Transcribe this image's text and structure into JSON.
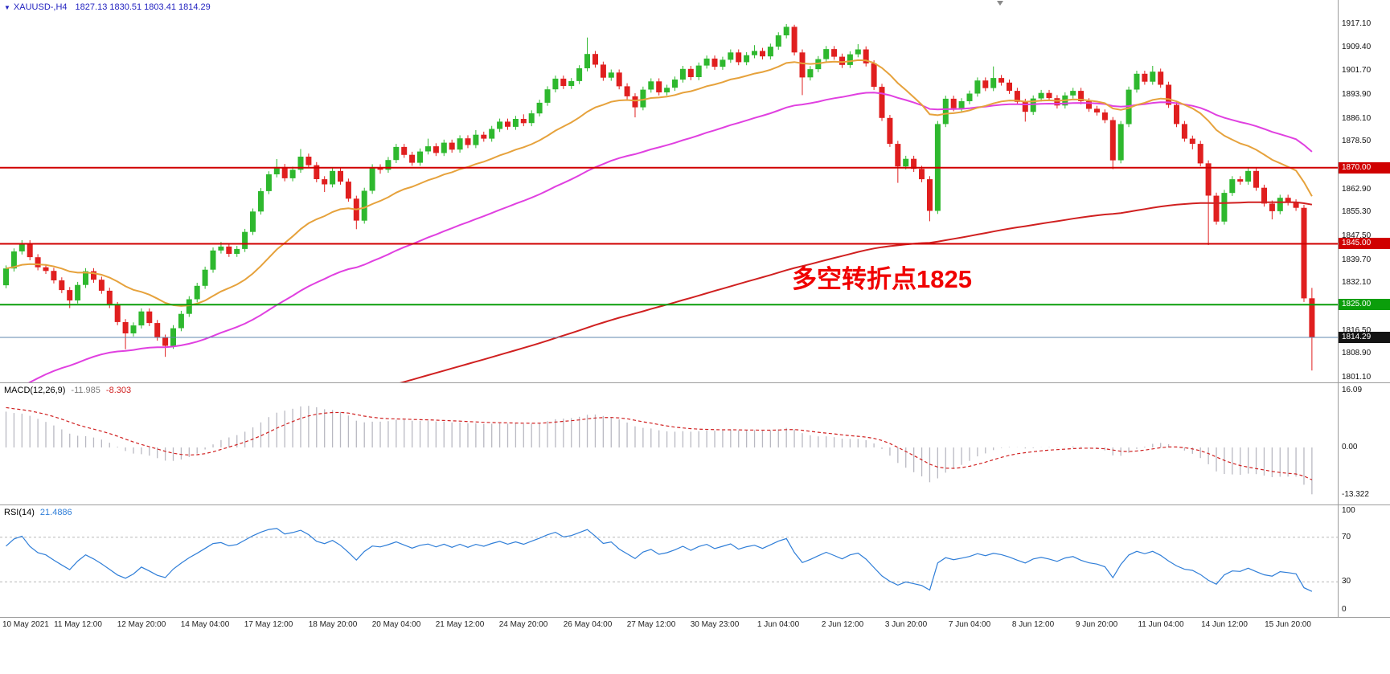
{
  "window": {
    "bg": "#ffffff"
  },
  "title": {
    "marker": "▼",
    "symbol_period": "XAUUSD-,H4",
    "ohlc": "1827.13 1830.51 1803.41 1814.29"
  },
  "annotation": {
    "text": "多空转折点1825",
    "color": "#f00000"
  },
  "colors": {
    "bull": "#2eb82e",
    "bear": "#e01f1f",
    "ma_fast": "#e6a23c",
    "ma_mid": "#e040e0",
    "ma_slow": "#d02020",
    "macd_hist": "#b9b9c2",
    "macd_signal": "#d02020",
    "rsi_line": "#2f7ed8",
    "hline_red": "#d00000",
    "hline_green": "#0b9e0b",
    "price_line": "#5f87af",
    "separator": "#9c9c9c",
    "title_text": "#2222c0",
    "macd_value_main": "#7a7a7a"
  },
  "price_axis": {
    "labels": [
      "1917.10",
      "1909.40",
      "1901.70",
      "1893.90",
      "1886.10",
      "1878.50",
      "1862.90",
      "1855.30",
      "1847.50",
      "1839.70",
      "1832.10",
      "1816.50",
      "1808.90",
      "1801.10"
    ],
    "tags": [
      {
        "text": "1870.00",
        "price": 1870.0,
        "bg": "#d00000"
      },
      {
        "text": "1845.00",
        "price": 1845.0,
        "bg": "#d00000"
      },
      {
        "text": "1825.00",
        "price": 1825.0,
        "bg": "#0b9e0b"
      },
      {
        "text": "1814.29",
        "price": 1814.29,
        "bg": "#141414"
      }
    ]
  },
  "chart_data": {
    "type": "candlestick",
    "symbol": "XAUUSD-",
    "timeframe": "H4",
    "current_bar": {
      "open": 1827.13,
      "high": 1830.51,
      "low": 1803.41,
      "close": 1814.29
    },
    "price_range": {
      "axis_top": 1917.1,
      "axis_bottom": 1801.1
    },
    "time_labels": [
      "10 May 2021",
      "11 May 12:00",
      "12 May 20:00",
      "14 May 04:00",
      "17 May 12:00",
      "18 May 20:00",
      "20 May 04:00",
      "21 May 12:00",
      "24 May 20:00",
      "26 May 04:00",
      "27 May 12:00",
      "30 May 23:00",
      "1 Jun 04:00",
      "2 Jun 12:00",
      "3 Jun 20:00",
      "7 Jun 04:00",
      "8 Jun 12:00",
      "9 Jun 20:00",
      "11 Jun 04:00",
      "14 Jun 12:00",
      "15 Jun 20:00"
    ],
    "hlines": [
      {
        "name": "resistance-line-1870",
        "price": 1870.0,
        "color_key": "hline_red",
        "width": 2
      },
      {
        "name": "resistance-line-1845",
        "price": 1845.0,
        "color_key": "hline_red",
        "width": 2
      },
      {
        "name": "support-line-1825",
        "price": 1825.0,
        "color_key": "hline_green",
        "width": 2
      },
      {
        "name": "current-price-line",
        "price": 1814.29,
        "color_key": "price_line",
        "width": 1
      }
    ],
    "moving_averages": [
      {
        "name": "ma-slow-line",
        "color_key": "ma_slow"
      },
      {
        "name": "ma-mid-line",
        "color_key": "ma_mid"
      },
      {
        "name": "ma-fast-line",
        "color_key": "ma_fast"
      }
    ],
    "candles": [
      [
        1831.4,
        1837.9,
        1830.4,
        1836.9
      ],
      [
        1836.9,
        1843.5,
        1835.9,
        1842.5
      ],
      [
        1842.5,
        1846.2,
        1841.5,
        1845.2
      ],
      [
        1845.2,
        1846.2,
        1839.6,
        1840.6
      ],
      [
        1840.6,
        1841.6,
        1836.3,
        1837.3
      ],
      [
        1837.3,
        1838.3,
        1835.1,
        1836.1
      ],
      [
        1836.1,
        1837.1,
        1832.0,
        1833.0
      ],
      [
        1833.0,
        1834.0,
        1828.8,
        1829.8
      ],
      [
        1829.8,
        1830.8,
        1823.9,
        1826.4
      ],
      [
        1826.4,
        1832.5,
        1825.4,
        1831.5
      ],
      [
        1831.5,
        1837.0,
        1830.5,
        1836.0
      ],
      [
        1836.0,
        1837.0,
        1832.2,
        1833.2
      ],
      [
        1833.2,
        1834.2,
        1828.6,
        1829.6
      ],
      [
        1829.6,
        1830.6,
        1823.9,
        1824.9
      ],
      [
        1824.9,
        1825.9,
        1818.3,
        1819.3
      ],
      [
        1819.3,
        1820.3,
        1810.4,
        1815.6
      ],
      [
        1815.6,
        1819.2,
        1814.6,
        1818.2
      ],
      [
        1818.2,
        1823.8,
        1817.2,
        1822.8
      ],
      [
        1822.8,
        1823.8,
        1818.0,
        1819.0
      ],
      [
        1819.0,
        1820.0,
        1813.2,
        1814.2
      ],
      [
        1814.2,
        1815.2,
        1807.9,
        1811.5
      ],
      [
        1811.5,
        1818.3,
        1810.5,
        1817.3
      ],
      [
        1817.3,
        1823.0,
        1816.3,
        1822.0
      ],
      [
        1822.0,
        1827.8,
        1821.0,
        1826.8
      ],
      [
        1826.8,
        1832.2,
        1825.8,
        1831.2
      ],
      [
        1831.2,
        1837.5,
        1830.2,
        1836.5
      ],
      [
        1836.5,
        1843.8,
        1835.5,
        1842.8
      ],
      [
        1842.8,
        1845.6,
        1841.8,
        1844.1
      ],
      [
        1844.1,
        1845.1,
        1840.7,
        1841.7
      ],
      [
        1841.7,
        1844.3,
        1840.7,
        1843.3
      ],
      [
        1843.3,
        1849.9,
        1842.3,
        1848.9
      ],
      [
        1848.9,
        1856.6,
        1847.9,
        1855.6
      ],
      [
        1855.6,
        1863.3,
        1854.6,
        1862.3
      ],
      [
        1862.3,
        1868.8,
        1861.3,
        1867.8
      ],
      [
        1867.8,
        1872.8,
        1866.8,
        1870.2
      ],
      [
        1870.2,
        1871.2,
        1865.5,
        1866.5
      ],
      [
        1866.5,
        1870.3,
        1865.5,
        1869.3
      ],
      [
        1869.3,
        1876.1,
        1868.3,
        1873.6
      ],
      [
        1873.6,
        1874.6,
        1869.8,
        1870.8
      ],
      [
        1870.8,
        1871.8,
        1865.2,
        1866.2
      ],
      [
        1866.2,
        1867.2,
        1862.0,
        1864.5
      ],
      [
        1864.5,
        1869.9,
        1863.5,
        1868.9
      ],
      [
        1868.9,
        1869.9,
        1864.4,
        1865.4
      ],
      [
        1865.4,
        1866.4,
        1858.8,
        1859.8
      ],
      [
        1859.8,
        1860.8,
        1849.8,
        1852.6
      ],
      [
        1852.6,
        1863.4,
        1851.6,
        1862.4
      ],
      [
        1862.4,
        1871.1,
        1861.4,
        1870.1
      ],
      [
        1870.1,
        1871.1,
        1868.0,
        1869.3
      ],
      [
        1869.3,
        1873.5,
        1868.3,
        1872.5
      ],
      [
        1872.5,
        1877.8,
        1871.5,
        1876.8
      ],
      [
        1876.8,
        1877.8,
        1873.2,
        1874.2
      ],
      [
        1874.2,
        1875.2,
        1870.6,
        1871.6
      ],
      [
        1871.6,
        1876.3,
        1870.6,
        1875.3
      ],
      [
        1875.3,
        1879.5,
        1874.3,
        1877.0
      ],
      [
        1877.0,
        1878.0,
        1873.8,
        1874.8
      ],
      [
        1874.8,
        1879.2,
        1873.8,
        1878.2
      ],
      [
        1878.2,
        1879.2,
        1874.9,
        1875.9
      ],
      [
        1875.9,
        1880.6,
        1874.9,
        1879.6
      ],
      [
        1879.6,
        1880.6,
        1876.4,
        1877.4
      ],
      [
        1877.4,
        1882.3,
        1876.4,
        1880.8
      ],
      [
        1880.8,
        1881.8,
        1878.5,
        1879.5
      ],
      [
        1879.5,
        1883.7,
        1878.5,
        1882.7
      ],
      [
        1882.7,
        1886.1,
        1881.7,
        1885.1
      ],
      [
        1885.1,
        1886.1,
        1882.4,
        1883.4
      ],
      [
        1883.4,
        1887.0,
        1882.4,
        1886.0
      ],
      [
        1886.0,
        1887.5,
        1883.6,
        1884.6
      ],
      [
        1884.6,
        1888.8,
        1883.6,
        1887.8
      ],
      [
        1887.8,
        1892.3,
        1886.8,
        1891.3
      ],
      [
        1891.3,
        1896.7,
        1890.3,
        1895.7
      ],
      [
        1895.7,
        1900.2,
        1894.7,
        1899.2
      ],
      [
        1899.2,
        1900.2,
        1895.8,
        1896.8
      ],
      [
        1896.8,
        1899.4,
        1895.8,
        1898.4
      ],
      [
        1898.4,
        1903.6,
        1897.4,
        1902.6
      ],
      [
        1902.6,
        1912.7,
        1901.6,
        1907.3
      ],
      [
        1907.3,
        1908.3,
        1902.8,
        1903.8
      ],
      [
        1903.8,
        1904.8,
        1898.5,
        1899.5
      ],
      [
        1899.5,
        1902.2,
        1898.5,
        1901.2
      ],
      [
        1901.2,
        1902.2,
        1895.7,
        1896.7
      ],
      [
        1896.7,
        1897.7,
        1892.4,
        1893.4
      ],
      [
        1893.4,
        1894.4,
        1886.5,
        1889.8
      ],
      [
        1889.8,
        1896.6,
        1888.8,
        1895.6
      ],
      [
        1895.6,
        1899.3,
        1894.6,
        1898.3
      ],
      [
        1898.3,
        1899.3,
        1893.7,
        1894.7
      ],
      [
        1894.7,
        1897.2,
        1893.7,
        1896.2
      ],
      [
        1896.2,
        1899.9,
        1895.2,
        1898.9
      ],
      [
        1898.9,
        1903.4,
        1897.9,
        1902.4
      ],
      [
        1902.4,
        1903.4,
        1898.7,
        1899.7
      ],
      [
        1899.7,
        1904.5,
        1898.7,
        1903.5
      ],
      [
        1903.5,
        1906.8,
        1902.5,
        1905.8
      ],
      [
        1905.8,
        1906.8,
        1902.1,
        1903.1
      ],
      [
        1903.1,
        1906.4,
        1902.1,
        1905.4
      ],
      [
        1905.4,
        1908.8,
        1904.4,
        1907.8
      ],
      [
        1907.8,
        1908.8,
        1903.6,
        1904.6
      ],
      [
        1904.6,
        1907.9,
        1903.6,
        1906.9
      ],
      [
        1906.9,
        1910.2,
        1905.9,
        1908.3
      ],
      [
        1908.3,
        1909.3,
        1905.5,
        1906.5
      ],
      [
        1906.5,
        1910.7,
        1905.5,
        1909.7
      ],
      [
        1909.7,
        1914.4,
        1908.7,
        1913.4
      ],
      [
        1913.4,
        1917.1,
        1912.4,
        1916.2
      ],
      [
        1916.2,
        1916.9,
        1906.8,
        1907.8
      ],
      [
        1907.8,
        1908.8,
        1893.8,
        1899.6
      ],
      [
        1899.6,
        1903.3,
        1898.6,
        1902.3
      ],
      [
        1902.3,
        1906.6,
        1901.3,
        1905.6
      ],
      [
        1905.6,
        1909.9,
        1904.6,
        1908.9
      ],
      [
        1908.9,
        1909.9,
        1905.4,
        1906.4
      ],
      [
        1906.4,
        1907.4,
        1902.7,
        1903.7
      ],
      [
        1903.7,
        1908.2,
        1902.7,
        1907.2
      ],
      [
        1907.2,
        1910.5,
        1906.2,
        1908.8
      ],
      [
        1908.8,
        1909.8,
        1903.2,
        1904.2
      ],
      [
        1904.2,
        1905.2,
        1895.5,
        1896.5
      ],
      [
        1896.5,
        1897.5,
        1885.3,
        1886.3
      ],
      [
        1886.3,
        1887.3,
        1876.8,
        1877.8
      ],
      [
        1877.8,
        1878.8,
        1865.0,
        1870.4
      ],
      [
        1870.4,
        1873.9,
        1869.4,
        1872.9
      ],
      [
        1872.9,
        1873.9,
        1868.6,
        1869.6
      ],
      [
        1869.6,
        1870.6,
        1865.2,
        1866.2
      ],
      [
        1866.2,
        1867.2,
        1852.4,
        1855.8
      ],
      [
        1855.8,
        1885.3,
        1854.8,
        1884.3
      ],
      [
        1884.3,
        1893.6,
        1883.3,
        1892.6
      ],
      [
        1892.6,
        1893.6,
        1888.5,
        1889.5
      ],
      [
        1889.5,
        1892.8,
        1888.5,
        1891.8
      ],
      [
        1891.8,
        1895.3,
        1890.8,
        1894.3
      ],
      [
        1894.3,
        1899.6,
        1893.3,
        1898.6
      ],
      [
        1898.6,
        1899.6,
        1895.1,
        1896.1
      ],
      [
        1896.1,
        1903.2,
        1895.1,
        1899.4
      ],
      [
        1899.4,
        1900.4,
        1896.9,
        1897.9
      ],
      [
        1897.9,
        1898.9,
        1894.2,
        1895.2
      ],
      [
        1895.2,
        1896.2,
        1890.6,
        1891.6
      ],
      [
        1891.6,
        1892.6,
        1885.1,
        1888.3
      ],
      [
        1888.3,
        1893.7,
        1887.3,
        1892.7
      ],
      [
        1892.7,
        1895.5,
        1891.7,
        1894.5
      ],
      [
        1894.5,
        1895.5,
        1891.8,
        1892.8
      ],
      [
        1892.8,
        1893.8,
        1889.4,
        1890.4
      ],
      [
        1890.4,
        1894.7,
        1889.4,
        1893.7
      ],
      [
        1893.7,
        1896.2,
        1892.7,
        1895.2
      ],
      [
        1895.2,
        1896.2,
        1890.8,
        1891.8
      ],
      [
        1891.8,
        1892.8,
        1888.3,
        1889.3
      ],
      [
        1889.3,
        1890.3,
        1887.1,
        1888.1
      ],
      [
        1888.1,
        1889.1,
        1884.6,
        1885.6
      ],
      [
        1885.6,
        1886.6,
        1869.5,
        1872.4
      ],
      [
        1872.4,
        1885.3,
        1871.4,
        1884.3
      ],
      [
        1884.3,
        1896.6,
        1883.3,
        1895.6
      ],
      [
        1895.6,
        1901.8,
        1894.6,
        1900.8
      ],
      [
        1900.8,
        1901.8,
        1897.2,
        1898.2
      ],
      [
        1898.2,
        1903.4,
        1897.2,
        1901.5
      ],
      [
        1901.5,
        1902.5,
        1896.2,
        1897.2
      ],
      [
        1897.2,
        1898.2,
        1889.6,
        1890.6
      ],
      [
        1890.6,
        1891.6,
        1883.3,
        1884.3
      ],
      [
        1884.3,
        1885.3,
        1878.5,
        1879.5
      ],
      [
        1879.5,
        1880.5,
        1876.0,
        1877.8
      ],
      [
        1877.8,
        1878.8,
        1870.4,
        1871.4
      ],
      [
        1871.4,
        1872.4,
        1844.6,
        1860.8
      ],
      [
        1860.8,
        1861.8,
        1851.3,
        1852.3
      ],
      [
        1852.3,
        1862.7,
        1851.3,
        1861.7
      ],
      [
        1861.7,
        1867.2,
        1860.7,
        1866.2
      ],
      [
        1866.2,
        1867.2,
        1864.4,
        1865.4
      ],
      [
        1865.4,
        1869.9,
        1864.4,
        1868.9
      ],
      [
        1868.9,
        1869.9,
        1862.4,
        1863.4
      ],
      [
        1863.4,
        1864.4,
        1857.2,
        1858.2
      ],
      [
        1858.2,
        1859.2,
        1853.0,
        1855.7
      ],
      [
        1855.7,
        1861.1,
        1854.7,
        1860.1
      ],
      [
        1860.1,
        1861.1,
        1857.6,
        1858.6
      ],
      [
        1858.6,
        1859.6,
        1855.8,
        1856.8
      ],
      [
        1856.8,
        1857.8,
        1825.9,
        1827.1
      ],
      [
        1827.13,
        1830.51,
        1803.41,
        1814.29
      ]
    ],
    "indicators": {
      "macd": {
        "name_label": "MACD(12,26,9)",
        "value_main": "-11.985",
        "value_signal": "-8.303",
        "axis_labels": [
          "16.09",
          "0.00",
          "-13.322"
        ],
        "axis_values": [
          16.09,
          0,
          -13.322
        ]
      },
      "rsi": {
        "name_label": "RSI(14)",
        "value": "21.4886",
        "axis_labels": [
          "100",
          "70",
          "30",
          "0"
        ],
        "axis_values": [
          100,
          70,
          30,
          0
        ],
        "levels": [
          70,
          30
        ]
      }
    }
  }
}
